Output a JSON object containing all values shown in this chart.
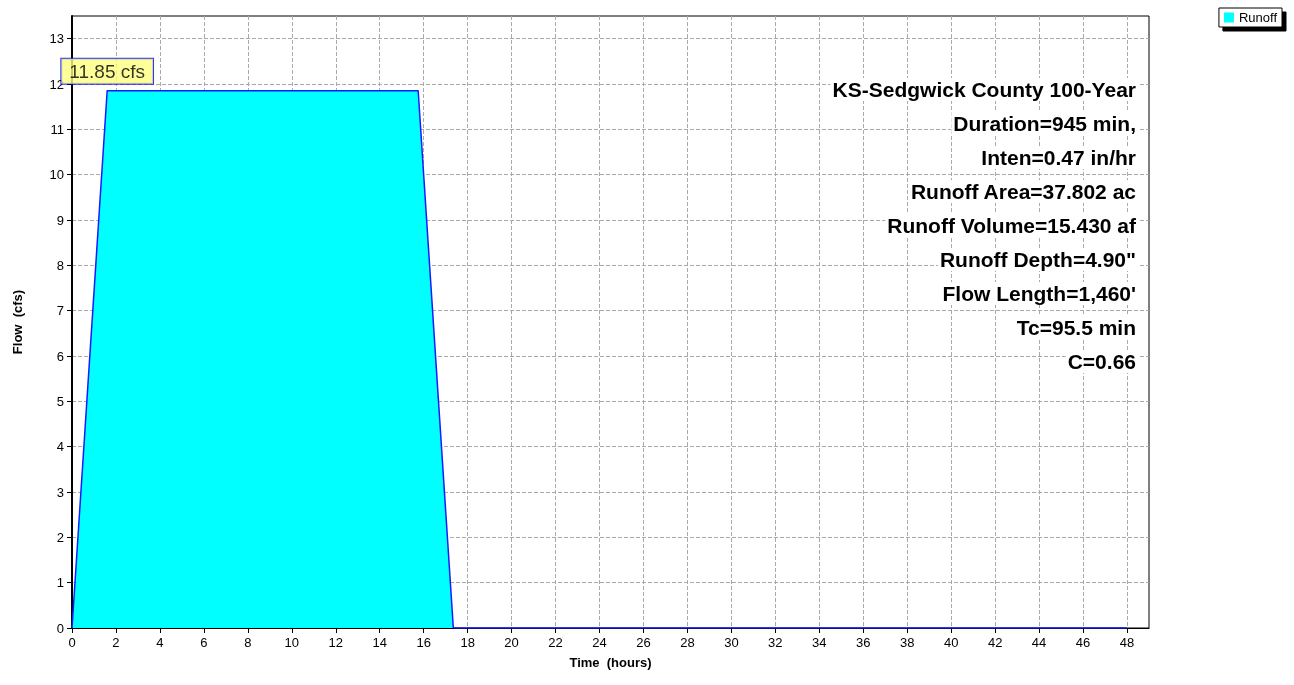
{
  "chart_data": {
    "type": "area",
    "xlabel": "Time  (hours)",
    "ylabel": "Flow  (cfs)",
    "x": [
      0,
      1.6,
      15.75,
      17.35,
      48
    ],
    "series": [
      {
        "name": "Runoff",
        "color": "#00ffff",
        "values": [
          0,
          11.85,
          11.85,
          0,
          0
        ]
      }
    ],
    "xlim": [
      0,
      49
    ],
    "xticks": [
      0,
      2,
      4,
      6,
      8,
      10,
      12,
      14,
      16,
      18,
      20,
      22,
      24,
      26,
      28,
      30,
      32,
      34,
      36,
      38,
      40,
      42,
      44,
      46,
      48
    ],
    "ylim": [
      0,
      13.5
    ],
    "yticks": [
      0,
      1,
      2,
      3,
      4,
      5,
      6,
      7,
      8,
      9,
      10,
      11,
      12,
      13
    ],
    "grid": true,
    "legend": "top right",
    "marker": "none",
    "annotations": [
      {
        "text": "11.85 cfs",
        "x": 1.6,
        "y": 11.85
      },
      "KS-Sedgwick County 100-Year",
      "Duration=945 min,",
      "Inten=0.47 in/hr",
      "Runoff Area=37.802 ac",
      "Runoff Volume=15.430 af",
      "Runoff Depth=4.90\"",
      "Flow Length=1,460'",
      "Tc=95.5 min",
      "C=0.66"
    ]
  }
}
